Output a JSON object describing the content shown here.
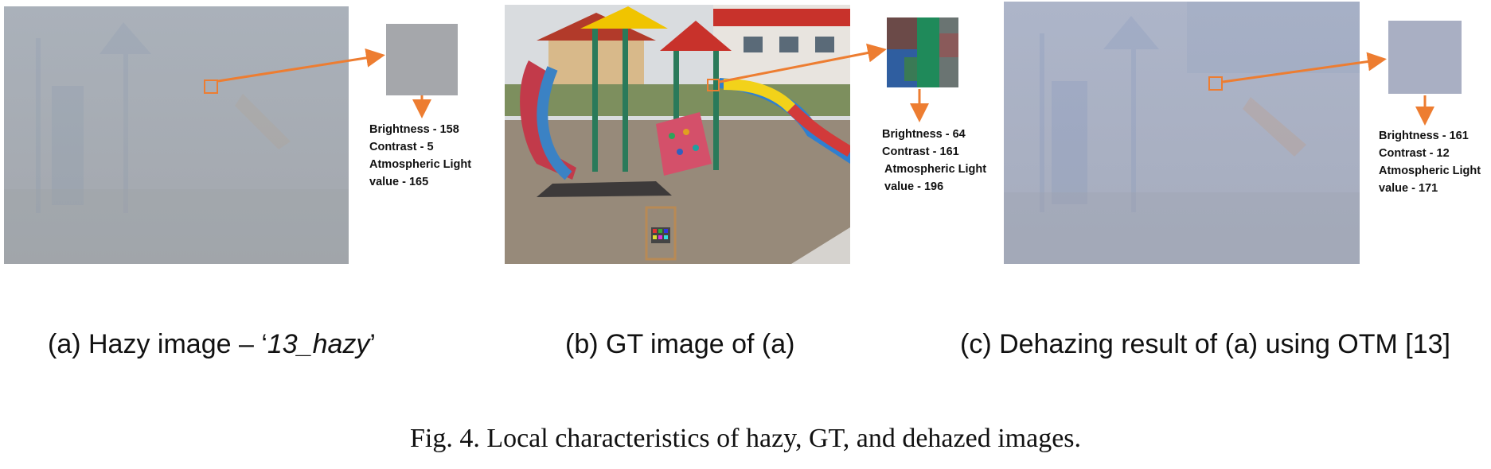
{
  "panels": [
    {
      "sublabel_prefix": "(a) Hazy image – ‘",
      "sublabel_italic": "13_hazy",
      "sublabel_suffix": "’",
      "stats": [
        "Brightness - 158",
        "Contrast - 5",
        "Atmospheric Light",
        "value - 165"
      ]
    },
    {
      "sublabel": "(b) GT image of (a)",
      "stats": [
        "Brightness - 64",
        "Contrast - 161",
        "Atmospheric Light",
        "value - 196"
      ]
    },
    {
      "sublabel": "(c) Dehazing result of (a) using OTM [13]",
      "stats": [
        "Brightness - 161",
        "Contrast - 12",
        "Atmospheric Light",
        "value - 171"
      ]
    }
  ],
  "caption": "Fig. 4. Local characteristics of hazy, GT, and dehazed images.",
  "colors": {
    "arrow": "#ed7d31",
    "hazy_tone": "#a7aeb7",
    "dehazed_tone": "#a9b2c6"
  }
}
